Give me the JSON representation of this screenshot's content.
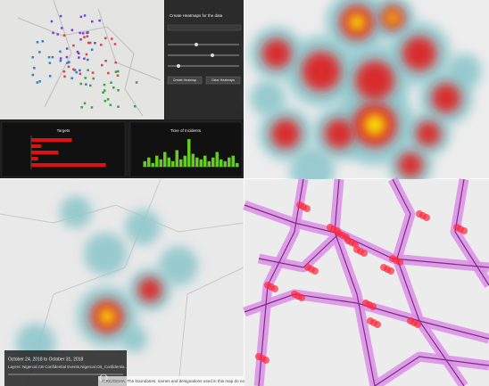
{
  "panel": {
    "title": "Create Heatmaps for the data",
    "buttons": [
      "Create Heatmap",
      "Clear Heatmaps"
    ]
  },
  "targets": {
    "title": "Targets",
    "values": [
      12,
      3,
      8,
      2,
      22
    ],
    "xlim": [
      0,
      25
    ]
  },
  "incidents": {
    "title": "Time of Incidents",
    "values": [
      3,
      5,
      2,
      6,
      4,
      8,
      5,
      3,
      9,
      4,
      6,
      15,
      7,
      5,
      4,
      6,
      3,
      5,
      8,
      4,
      3,
      5,
      6,
      2
    ],
    "ylim": [
      0,
      16
    ]
  },
  "timeline": {
    "dates": "October 24, 2018 to October 31, 2018",
    "layers": "Layers: Nigercal.CB Confidential Events,Nigercal.CB_Confidentia...",
    "attribution": "ICRC/OCHA. The boundaries, names and designations used in this map do not impl..."
  }
}
